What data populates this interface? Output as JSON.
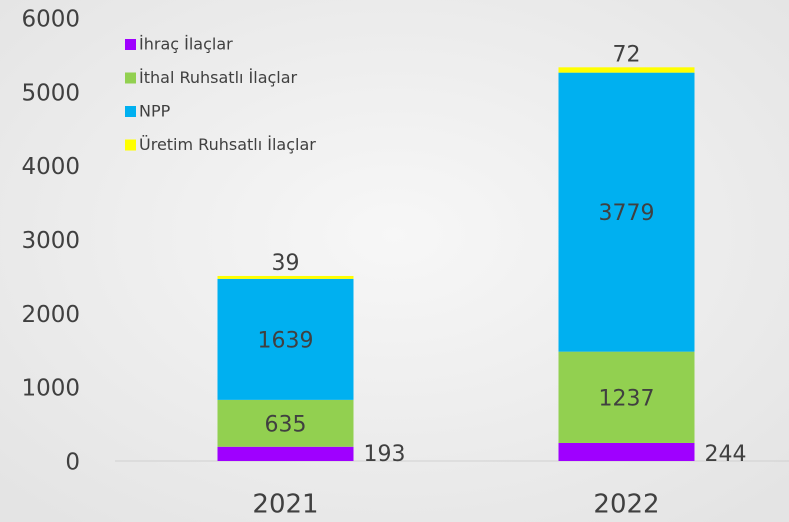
{
  "chart_data": {
    "type": "stacked_bar",
    "categories": [
      "2021",
      "2022"
    ],
    "series": [
      {
        "name": "İhraç İlaçlar",
        "color": "#9f00ff",
        "values": [
          193,
          244
        ]
      },
      {
        "name": "İthal Ruhsatlı İlaçlar",
        "color": "#92d050",
        "values": [
          635,
          1237
        ]
      },
      {
        "name": "NPP",
        "color": "#00b0f0",
        "values": [
          1639,
          3779
        ]
      },
      {
        "name": "Üretim Ruhsatlı İlaçlar",
        "color": "#ffff00",
        "values": [
          39,
          72
        ]
      }
    ],
    "ylim": [
      0,
      6000
    ],
    "yticks": [
      0,
      1000,
      2000,
      3000,
      4000,
      5000,
      6000
    ],
    "legend": "upper left"
  }
}
